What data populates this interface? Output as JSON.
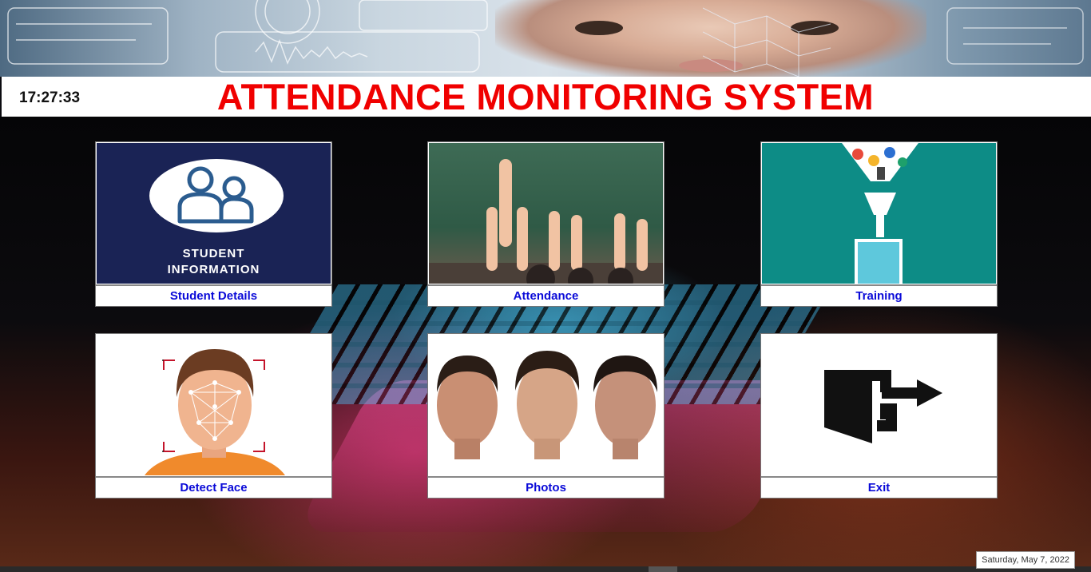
{
  "clock": "17:27:33",
  "title": "ATTENDANCE MONITORING SYSTEM",
  "date": "Saturday, May 7, 2022",
  "tiles": [
    {
      "label": "Student Details",
      "badge_line1": "STUDENT",
      "badge_line2": "INFORMATION"
    },
    {
      "label": "Attendance"
    },
    {
      "label": "Training"
    },
    {
      "label": "Detect Face"
    },
    {
      "label": "Photos"
    },
    {
      "label": "Exit"
    }
  ],
  "colors": {
    "title": "#f00000",
    "tile_label": "#0a0ad8",
    "student_bg": "#1a2355",
    "training_bg": "#0d8c86"
  }
}
